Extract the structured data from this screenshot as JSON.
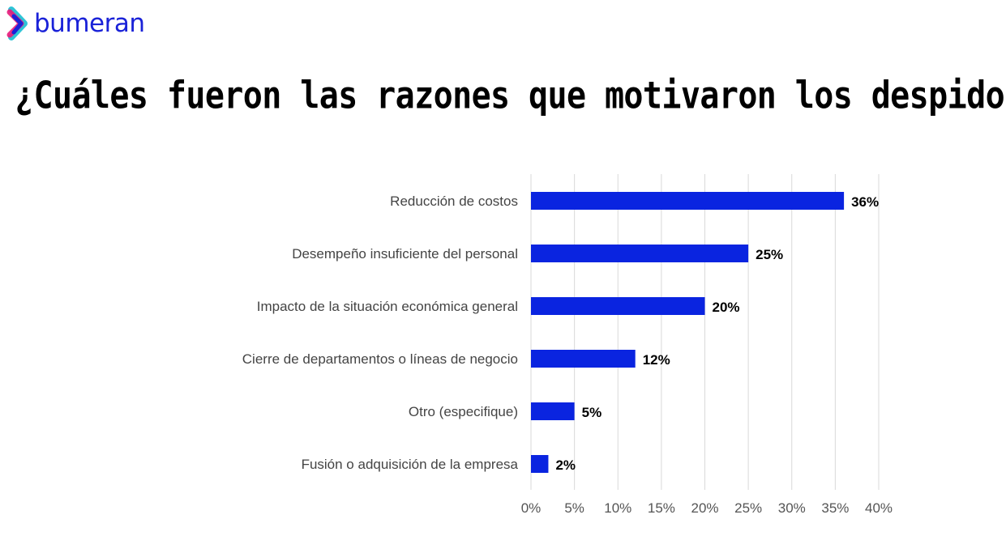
{
  "brand": {
    "name": "bumeran",
    "logo_colors": [
      "#e8197a",
      "#2ec4d6",
      "#1a22d8"
    ]
  },
  "title": "¿Cuáles fueron las razones que motivaron los despidos?",
  "chart_data": {
    "type": "bar",
    "orientation": "horizontal",
    "categories": [
      "Reducción de costos",
      "Desempeño insuficiente del personal",
      "Impacto de la situación económica general",
      "Cierre de departamentos o líneas de negocio",
      "Otro (especifique)",
      "Fusión o adquisición de la empresa"
    ],
    "values": [
      36,
      25,
      20,
      12,
      5,
      2
    ],
    "data_labels": [
      "36%",
      "25%",
      "20%",
      "12%",
      "5%",
      "2%"
    ],
    "xlim": [
      0,
      40
    ],
    "xticks": [
      0,
      5,
      10,
      15,
      20,
      25,
      30,
      35,
      40
    ],
    "xtick_labels": [
      "0%",
      "5%",
      "10%",
      "15%",
      "20%",
      "25%",
      "30%",
      "35%",
      "40%"
    ],
    "grid": true,
    "bar_color": "#0a24e0"
  }
}
